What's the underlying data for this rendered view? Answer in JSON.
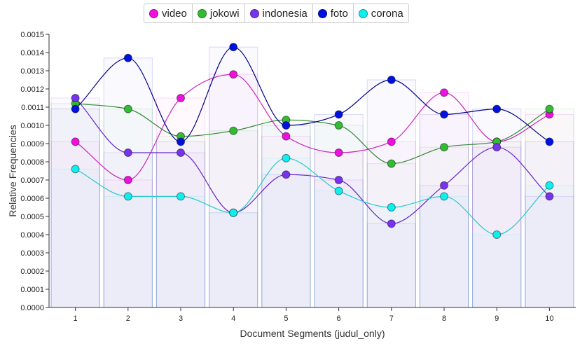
{
  "chart_data": {
    "type": "line",
    "xlabel": "Document Segments (judul_only)",
    "ylabel": "Relative Frequencies",
    "x": [
      1,
      2,
      3,
      4,
      5,
      6,
      7,
      8,
      9,
      10
    ],
    "x_tick_labels": [
      "1",
      "2",
      "3",
      "4",
      "5",
      "6",
      "7",
      "8",
      "9",
      "10"
    ],
    "ylim": [
      0,
      0.0015
    ],
    "y_tick_labels": [
      "0.0000",
      "0.0001",
      "0.0002",
      "0.0003",
      "0.0004",
      "0.0005",
      "0.0006",
      "0.0007",
      "0.0008",
      "0.0009",
      "0.0010",
      "0.0011",
      "0.0012",
      "0.0013",
      "0.0014",
      "0.0015"
    ],
    "legend_position": "top-center",
    "grid": false,
    "series": [
      {
        "name": "video",
        "color": "#ee11dd",
        "line_color": "#cc22bb",
        "values": [
          0.00091,
          0.0007,
          0.00115,
          0.00128,
          0.00094,
          0.00085,
          0.00091,
          0.00118,
          0.00091,
          0.00106
        ]
      },
      {
        "name": "jokowi",
        "color": "#33bb33",
        "line_color": "#338833",
        "values": [
          0.00112,
          0.00109,
          0.00094,
          0.00097,
          0.00103,
          0.001,
          0.00079,
          0.00088,
          0.00091,
          0.00109
        ]
      },
      {
        "name": "indonesia",
        "color": "#7733ee",
        "line_color": "#6622cc",
        "values": [
          0.00115,
          0.00085,
          0.00085,
          0.00052,
          0.00073,
          0.0007,
          0.00046,
          0.00067,
          0.00088,
          0.00061
        ]
      },
      {
        "name": "foto",
        "color": "#0011dd",
        "line_color": "#000088",
        "values": [
          0.00109,
          0.00137,
          0.00091,
          0.00143,
          0.001,
          0.00106,
          0.00125,
          0.00106,
          0.00109,
          0.00091
        ]
      },
      {
        "name": "corona",
        "color": "#11eeee",
        "line_color": "#22cccc",
        "values": [
          0.00076,
          0.00061,
          0.00061,
          0.00052,
          0.00082,
          0.00064,
          0.00055,
          0.00061,
          0.0004,
          0.00067
        ]
      }
    ]
  }
}
